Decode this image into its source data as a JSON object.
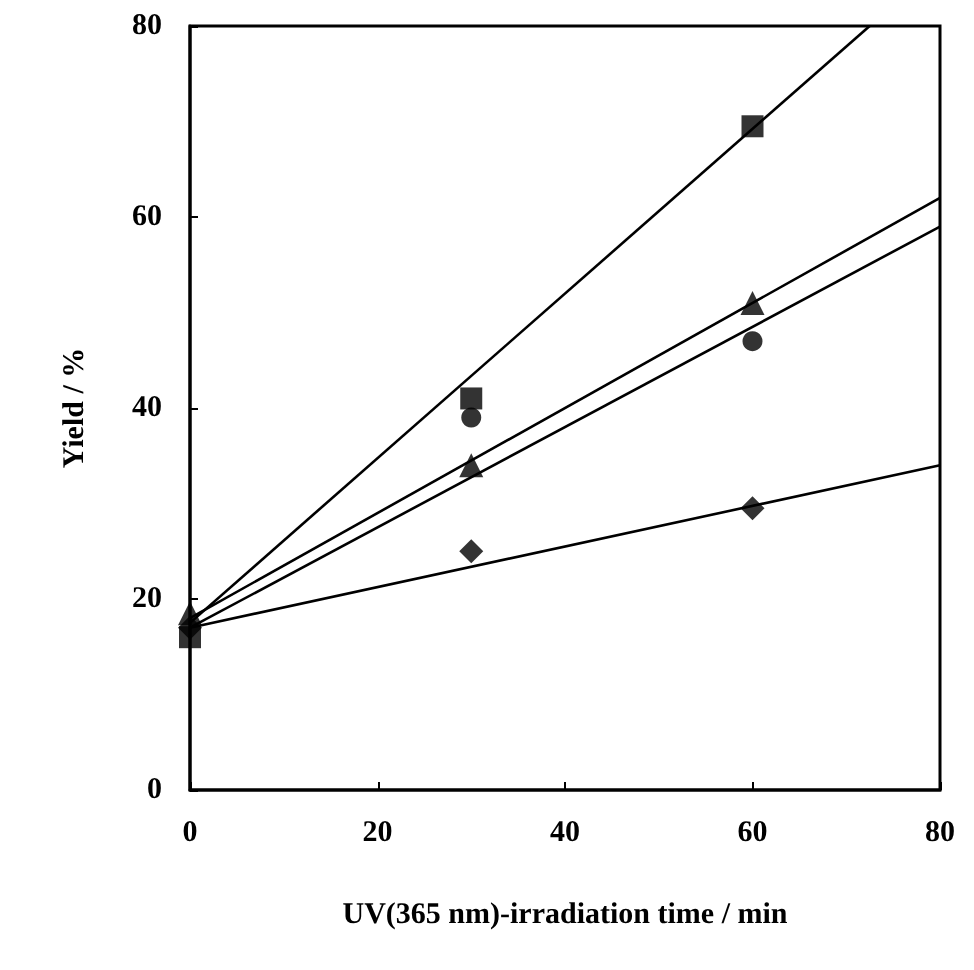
{
  "chart_data": {
    "type": "scatter",
    "xlabel": "UV(365 nm)-irradiation time / min",
    "ylabel": "Yield / %",
    "xlim": [
      0,
      80
    ],
    "xticks": [
      0,
      20,
      40,
      60,
      80
    ],
    "ylim": [
      0,
      80
    ],
    "yticks": [
      0,
      20,
      40,
      60,
      80
    ],
    "grid": false,
    "series": [
      {
        "marker": "square",
        "color": "#000000",
        "x": [
          0,
          30,
          60
        ],
        "values": [
          16,
          41,
          69.5
        ]
      },
      {
        "marker": "circle",
        "color": "#000000",
        "x": [
          30,
          60
        ],
        "values": [
          39,
          47
        ]
      },
      {
        "marker": "triangle",
        "color": "#000000",
        "x": [
          0,
          30,
          60
        ],
        "values": [
          18.5,
          34,
          51
        ]
      },
      {
        "marker": "diamond",
        "color": "#000000",
        "x": [
          0,
          30,
          60
        ],
        "values": [
          17,
          25,
          29.5
        ]
      },
      {
        "type": "line",
        "marker": "none",
        "line_style": "solid",
        "color": "#000000",
        "x": [
          0,
          72.5
        ],
        "values": [
          17.5,
          80
        ]
      },
      {
        "type": "line",
        "marker": "none",
        "line_style": "solid",
        "color": "#000000",
        "x": [
          0,
          80
        ],
        "values": [
          17,
          59
        ]
      },
      {
        "type": "line",
        "marker": "none",
        "line_style": "solid",
        "color": "#000000",
        "x": [
          0,
          80
        ],
        "values": [
          18,
          62
        ]
      },
      {
        "type": "line",
        "marker": "none",
        "line_style": "solid",
        "color": "#000000",
        "x": [
          0,
          80
        ],
        "values": [
          17,
          34
        ]
      }
    ]
  }
}
